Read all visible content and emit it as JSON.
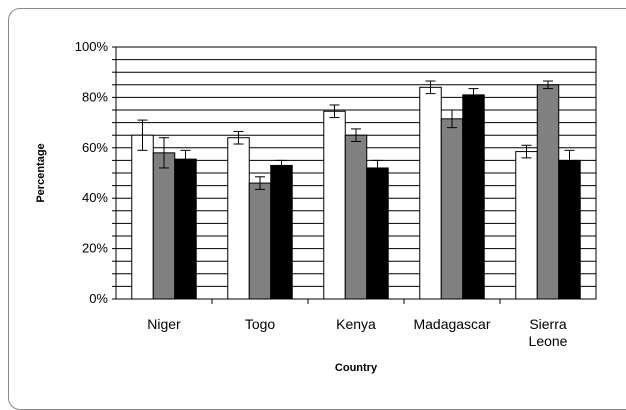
{
  "chart_data": {
    "type": "bar",
    "title": "",
    "xlabel": "Country",
    "ylabel": "Percentage",
    "ylim": [
      0,
      100
    ],
    "y_ticks": [
      "0%",
      "20%",
      "40%",
      "60%",
      "80%",
      "100%"
    ],
    "grid": true,
    "legend": "none",
    "categories": [
      {
        "lines": [
          "Niger"
        ]
      },
      {
        "lines": [
          "Togo"
        ]
      },
      {
        "lines": [
          "Kenya"
        ]
      },
      {
        "lines": [
          "Madagascar"
        ]
      },
      {
        "lines": [
          "Sierra",
          "Leone"
        ]
      }
    ],
    "series": [
      {
        "color": "#ffffff",
        "values": [
          65,
          64,
          74.5,
          84,
          58.5
        ],
        "errors": [
          6,
          2.5,
          2.5,
          2.5,
          2.5
        ]
      },
      {
        "color": "#808080",
        "values": [
          58,
          46,
          65,
          71.5,
          85
        ],
        "errors": [
          6,
          2.5,
          2.5,
          3.5,
          1.5
        ]
      },
      {
        "color": "#000000",
        "values": [
          55.5,
          53,
          52,
          81,
          55
        ],
        "errors": [
          3.5,
          2,
          3,
          2.5,
          4
        ]
      }
    ]
  }
}
